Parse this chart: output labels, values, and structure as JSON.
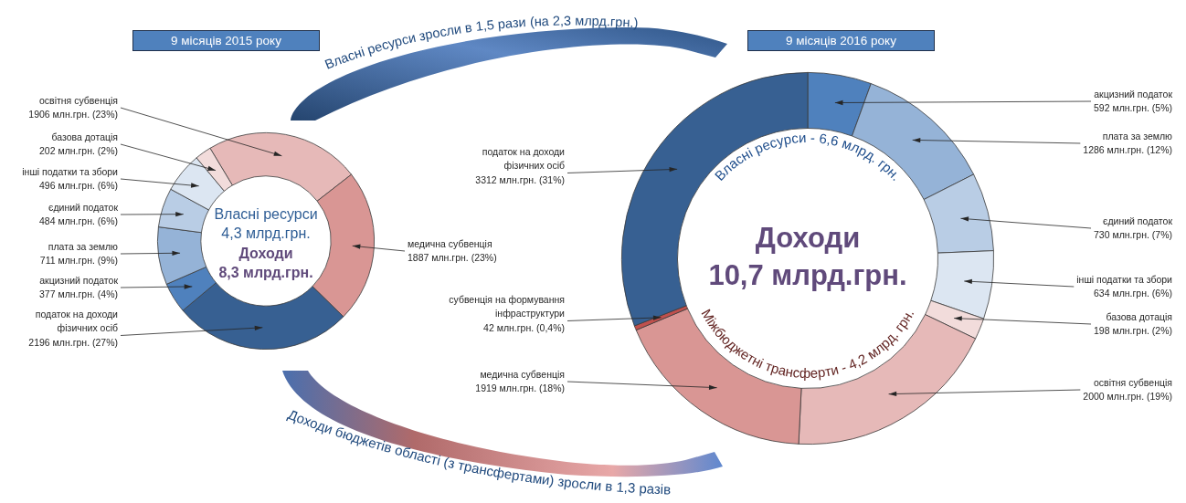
{
  "chart_data": [
    {
      "type": "donut",
      "title": "9 місяців 2015 року",
      "categories": [
        "освітня субвенція",
        "медична субвенція",
        "податок на доходи фізичних осіб",
        "акцизний податок",
        "плата за землю",
        "єдиний податок",
        "інші податки та збори",
        "базова дотація"
      ],
      "values": [
        1906,
        1887,
        2196,
        377,
        711,
        484,
        496,
        202
      ],
      "colors": [
        "#e6b9b8",
        "#d99694",
        "#376092",
        "#4f81bd",
        "#95b3d7",
        "#b9cde5",
        "#dce6f2",
        "#f2dcdb"
      ],
      "value_labels": [
        "1906 млн.грн. (23%)",
        "1887 млн.грн. (23%)",
        "2196 млн.грн. (27%)",
        "377 млн.грн. (4%)",
        "711 млн.грн. (9%)",
        "484 млн.грн. (6%)",
        "496 млн.грн. (6%)",
        "202 млн.грн. (2%)"
      ],
      "annotations": [
        "Власні ресурси",
        "4,3 млрд.грн.",
        "Доходи",
        "8,3 млрд.грн.",
        "Власні ресурси зросли в 1,5 рази (на 2,3 млрд.грн.)",
        "Доходи бюджетів області (з трансфертами) зросли в 1,3 разів"
      ]
    },
    {
      "type": "donut",
      "title": "9 місяців 2016 року",
      "categories": [
        "акцизний податок",
        "плата за землю",
        "єдиний податок",
        "інші податки та збори",
        "базова дотація",
        "освітня субвенція",
        "медична субвенція",
        "субвенція на формування інфраструктури",
        "податок на доходи фізичних осіб"
      ],
      "values": [
        592,
        1286,
        730,
        634,
        198,
        2000,
        1919,
        42,
        3312
      ],
      "colors": [
        "#4f81bd",
        "#95b3d7",
        "#b9cde5",
        "#dce6f2",
        "#f2dcdb",
        "#e6b9b8",
        "#d99694",
        "#c0504d",
        "#376092"
      ],
      "value_labels": [
        "592 млн.грн. (5%)",
        "1286 млн.грн. (12%)",
        "730 млн.грн. (7%)",
        "634 млн.грн. (6%)",
        "198 млн.грн. (2%)",
        "2000 млн.грн. (19%)",
        "1919 млн.грн. (18%)",
        "42 млн.грн. (0,4%)",
        "3312 млн.грн. (31%)"
      ],
      "annotations": [
        "Доходи",
        "10,7 млрд.грн.",
        "Власні ресурси - 6,6 млрд. грн.",
        "Міжбюджетні трансферти - 4,2 млрд. грн."
      ]
    }
  ]
}
